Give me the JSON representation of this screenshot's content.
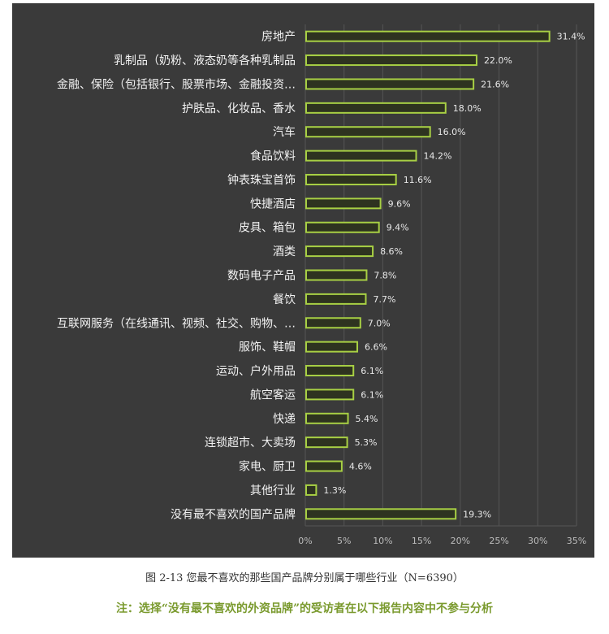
{
  "chart_data": {
    "type": "bar",
    "orientation": "horizontal",
    "categories": [
      "房地产",
      "乳制品（奶粉、液态奶等各种乳制品",
      "金融、保险（包括银行、股票市场、金融投资…",
      "护肤品、化妆品、香水",
      "汽车",
      "食品饮料",
      "钟表珠宝首饰",
      "快捷酒店",
      "皮具、箱包",
      "酒类",
      "数码电子产品",
      "餐饮",
      "互联网服务（在线通讯、视频、社交、购物、…",
      "服饰、鞋帽",
      "运动、户外用品",
      "航空客运",
      "快递",
      "连锁超市、大卖场",
      "家电、厨卫",
      "其他行业",
      "没有最不喜欢的国产品牌"
    ],
    "values": [
      31.4,
      22.0,
      21.6,
      18.0,
      16.0,
      14.2,
      11.6,
      9.6,
      9.4,
      8.6,
      7.8,
      7.7,
      7.0,
      6.6,
      6.1,
      6.1,
      5.4,
      5.3,
      4.6,
      1.3,
      19.3
    ],
    "value_labels": [
      "31.4%",
      "22.0%",
      "21.6%",
      "18.0%",
      "16.0%",
      "14.2%",
      "11.6%",
      "9.6%",
      "9.4%",
      "8.6%",
      "7.8%",
      "7.7%",
      "7.0%",
      "6.6%",
      "6.1%",
      "6.1%",
      "5.4%",
      "5.3%",
      "4.6%",
      "1.3%",
      "19.3%"
    ],
    "xlim": [
      0,
      35
    ],
    "xticks": [
      "0%",
      "5%",
      "10%",
      "15%",
      "20%",
      "25%",
      "30%",
      "35%"
    ],
    "grid": true,
    "colors": {
      "background": "#3a3a3a",
      "bar_outline": "#a8d044",
      "bar_fill": "#2e3320",
      "grid": "#555555"
    }
  },
  "caption": "图 2-13 您最不喜欢的那些国产品牌分别属于哪些行业（N=6390）",
  "note": "注：选择“没有最不喜欢的外资品牌”的受访者在以下报告内容中不参与分析"
}
